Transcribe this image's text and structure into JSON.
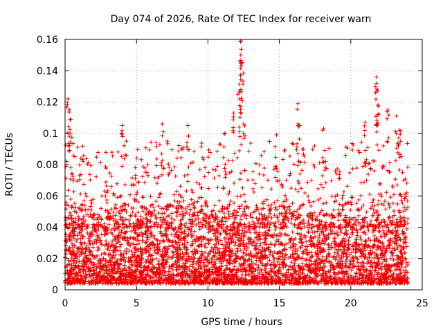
{
  "chart_data": {
    "type": "scatter",
    "title": "Day 074 of 2026, Rate Of TEC Index for receiver warn",
    "xlabel": "GPS time / hours",
    "ylabel": "ROTI / TECUs",
    "xlim": [
      0,
      25
    ],
    "ylim": [
      0,
      0.16
    ],
    "x_ticks": [
      0,
      5,
      10,
      15,
      20,
      25
    ],
    "x_tick_labels": [
      "0",
      "5",
      "10",
      "15",
      "20",
      "25"
    ],
    "y_ticks": [
      0,
      0.02,
      0.04,
      0.06,
      0.08,
      0.1,
      0.12,
      0.14,
      0.16
    ],
    "y_tick_labels": [
      "0",
      "0.02",
      "0.04",
      "0.06",
      "0.08",
      "0.1",
      "0.12",
      "0.14",
      "0.16"
    ],
    "grid": true,
    "marker": "+",
    "color": "#ee0000",
    "series": [
      {
        "name": "ROTI",
        "x_range": [
          0,
          24
        ],
        "dense_band": [
          0.004,
          0.05
        ],
        "notable_points": [
          {
            "x": 0.2,
            "y": 0.122
          },
          {
            "x": 0.3,
            "y": 0.115
          },
          {
            "x": 0.4,
            "y": 0.1
          },
          {
            "x": 4.0,
            "y": 0.105
          },
          {
            "x": 6.8,
            "y": 0.106
          },
          {
            "x": 8.6,
            "y": 0.105
          },
          {
            "x": 11.2,
            "y": 0.1
          },
          {
            "x": 11.8,
            "y": 0.113
          },
          {
            "x": 12.3,
            "y": 0.159
          },
          {
            "x": 12.3,
            "y": 0.15
          },
          {
            "x": 12.4,
            "y": 0.145
          },
          {
            "x": 12.3,
            "y": 0.137
          },
          {
            "x": 12.2,
            "y": 0.127
          },
          {
            "x": 12.5,
            "y": 0.106
          },
          {
            "x": 14.8,
            "y": 0.099
          },
          {
            "x": 16.3,
            "y": 0.119
          },
          {
            "x": 16.4,
            "y": 0.105
          },
          {
            "x": 18.1,
            "y": 0.103
          },
          {
            "x": 21.0,
            "y": 0.107
          },
          {
            "x": 21.8,
            "y": 0.136
          },
          {
            "x": 21.8,
            "y": 0.132
          },
          {
            "x": 21.9,
            "y": 0.118
          },
          {
            "x": 22.6,
            "y": 0.115
          },
          {
            "x": 23.2,
            "y": 0.111
          },
          {
            "x": 23.4,
            "y": 0.102
          }
        ]
      }
    ]
  }
}
